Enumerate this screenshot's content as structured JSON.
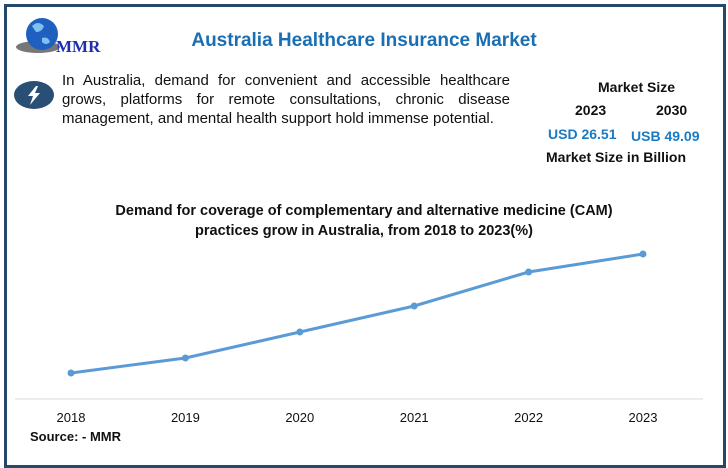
{
  "header": {
    "logo_text": "MMR",
    "title": "Australia Healthcare Insurance Market"
  },
  "description": {
    "icon": "lightning-bolt-icon",
    "text": "In Australia, demand for convenient and accessible healthcare grows, platforms for remote consultations, chronic disease management, and mental health support hold immense potential."
  },
  "market": {
    "heading": "Market Size",
    "year_a": "2023",
    "year_b": "2030",
    "value_a": "USD 26.51",
    "value_b": "USB 49.09",
    "unit_note": "Market Size in Billion"
  },
  "colors": {
    "accent": "#1a6fb4",
    "line": "#5b9bd5",
    "border": "#24496b"
  },
  "chart_data": {
    "type": "line",
    "title": "Demand for coverage of complementary and alternative medicine (CAM) practices grow in Australia, from 2018 to 2023(%)",
    "categories": [
      "2018",
      "2019",
      "2020",
      "2021",
      "2022",
      "2023"
    ],
    "values": [
      26,
      41,
      67,
      93,
      127,
      145
    ],
    "ylim": [
      0,
      160
    ],
    "y_axis_shown": false,
    "grid": false,
    "legend": "none"
  },
  "source": "Source: - MMR"
}
